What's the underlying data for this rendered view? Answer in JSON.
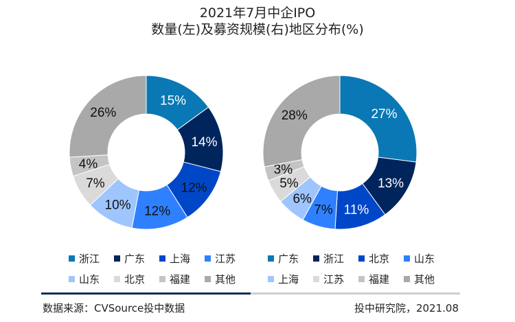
{
  "title_line1": "2021年7月中企IPO",
  "title_line2": "数量(左)及募资规模(右)地区分布(%)",
  "chart_data": [
    {
      "type": "pie",
      "subtype": "donut",
      "name": "数量",
      "categories": [
        "浙江",
        "广东",
        "上海",
        "江苏",
        "山东",
        "北京",
        "福建",
        "其他"
      ],
      "values": [
        15,
        14,
        12,
        12,
        10,
        7,
        4,
        26
      ],
      "labels": [
        "15%",
        "14%",
        "12%",
        "12%",
        "10%",
        "7%",
        "4%",
        "26%"
      ],
      "colors": [
        "#0a78b4",
        "#00245c",
        "#0047c8",
        "#2f80ff",
        "#9fc5ff",
        "#dadada",
        "#c4c4c4",
        "#a9a9a9"
      ],
      "label_colors": [
        "#ffffff",
        "#ffffff",
        "#111111",
        "#111111",
        "#111111",
        "#111111",
        "#111111",
        "#111111"
      ],
      "legend": [
        "浙江",
        "广东",
        "上海",
        "江苏",
        "山东",
        "北京",
        "福建",
        "其他"
      ],
      "legend_placement": "bottom"
    },
    {
      "type": "pie",
      "subtype": "donut",
      "name": "募资规模",
      "categories": [
        "广东",
        "浙江",
        "北京",
        "山东",
        "上海",
        "江苏",
        "福建",
        "其他"
      ],
      "values": [
        27,
        13,
        11,
        7,
        6,
        5,
        3,
        28
      ],
      "labels": [
        "27%",
        "13%",
        "11%",
        "7%",
        "6%",
        "5%",
        "3%",
        "28%"
      ],
      "colors": [
        "#0a78b4",
        "#00245c",
        "#0047c8",
        "#2f80ff",
        "#9fc5ff",
        "#dadada",
        "#c4c4c4",
        "#a9a9a9"
      ],
      "label_colors": [
        "#ffffff",
        "#ffffff",
        "#ffffff",
        "#111111",
        "#111111",
        "#111111",
        "#111111",
        "#111111"
      ],
      "legend": [
        "广东",
        "浙江",
        "北京",
        "山东",
        "上海",
        "江苏",
        "福建",
        "其他"
      ],
      "legend_placement": "bottom"
    }
  ],
  "footer": {
    "source": "数据来源：CVSource投中数据",
    "credit": "投中研究院，2021.08"
  },
  "accent_colors": {
    "divider_dark": "#0f2b5b",
    "divider_light": "#cfcfcf"
  }
}
